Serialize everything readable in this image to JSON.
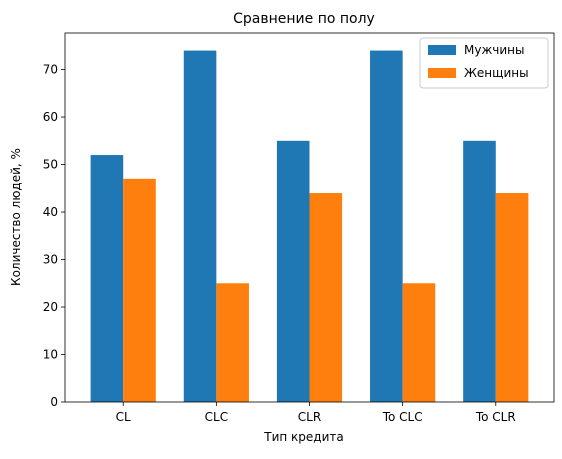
{
  "chart_data": {
    "type": "bar",
    "title": "Сравнение по полу",
    "xlabel": "Тип кредита",
    "ylabel": "Количество людей, %",
    "categories": [
      "CL",
      "CLC",
      "CLR",
      "To CLC",
      "To CLR"
    ],
    "series": [
      {
        "name": "Мужчины",
        "values": [
          52,
          74,
          55,
          74,
          55
        ],
        "color": "#1f77b4"
      },
      {
        "name": "Женщины",
        "values": [
          47,
          25,
          44,
          25,
          44
        ],
        "color": "#ff7f0e"
      }
    ],
    "ylim": [
      0,
      77.7
    ],
    "yticks": [
      0,
      10,
      20,
      30,
      40,
      50,
      60,
      70
    ],
    "grid": false,
    "legend": "top-right"
  }
}
